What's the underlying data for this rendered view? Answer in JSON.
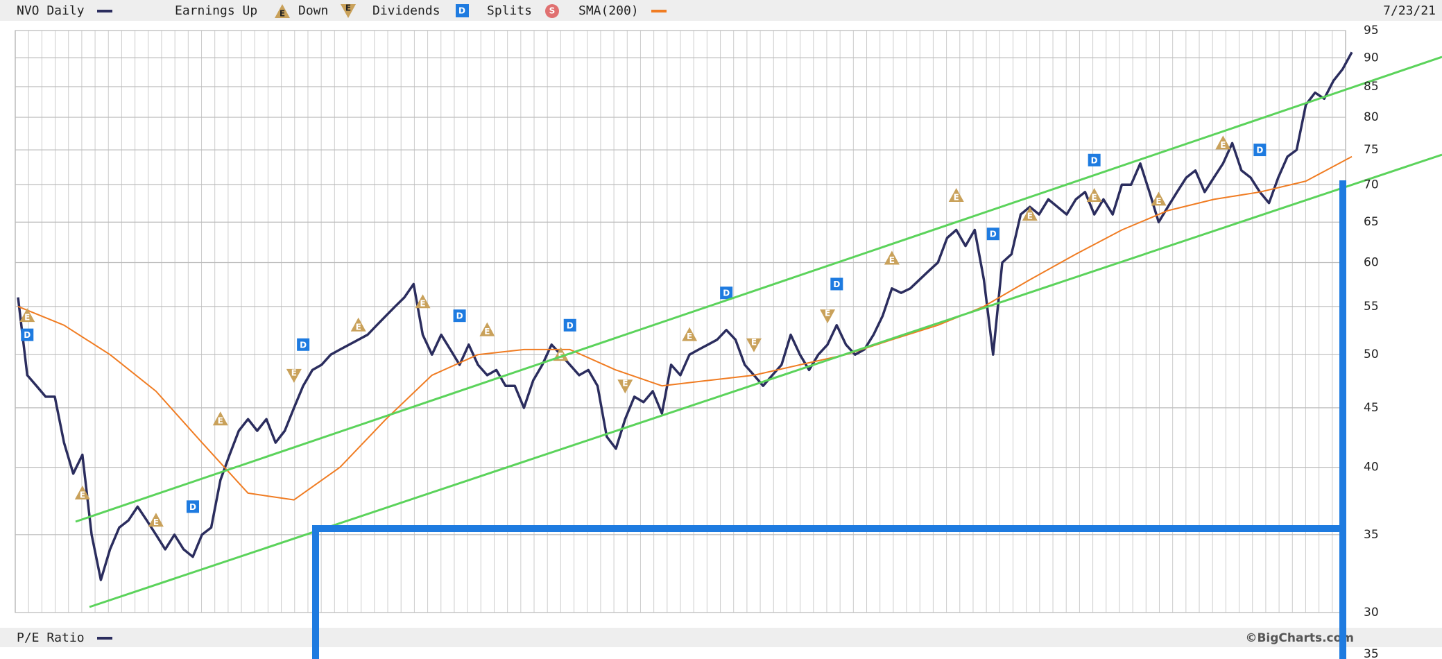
{
  "chart_data": {
    "type": "line",
    "series": [
      {
        "name": "NVO Daily",
        "color": "#2b2d5e",
        "values": [
          56,
          48,
          47,
          46,
          46,
          42,
          39.5,
          41,
          35,
          32,
          34,
          35.5,
          36,
          37,
          36,
          35,
          34,
          35,
          34,
          33.5,
          35,
          35.5,
          39,
          41,
          43,
          44,
          43,
          44,
          42,
          43,
          45,
          47,
          48.5,
          49,
          50,
          50.5,
          51,
          51.5,
          52,
          53,
          54,
          55,
          56,
          57.5,
          52,
          50,
          52,
          50.5,
          49,
          51,
          49,
          48,
          48.5,
          47,
          47,
          45,
          47.5,
          49,
          51,
          50,
          49,
          48,
          48.5,
          47,
          42.5,
          41.5,
          44,
          46,
          45.5,
          46.5,
          44.5,
          49,
          48,
          50,
          50.5,
          51,
          51.5,
          52.5,
          51.5,
          49,
          48,
          47,
          48,
          49,
          52,
          50,
          48.5,
          50,
          51,
          53,
          51,
          50,
          50.5,
          52,
          54,
          57,
          56.5,
          57,
          58,
          59,
          60,
          63,
          64,
          62,
          64,
          58,
          50,
          60,
          61,
          66,
          67,
          66,
          68,
          67,
          66,
          68,
          69,
          66,
          68,
          66,
          70,
          70,
          73,
          69,
          65,
          67,
          69,
          71,
          72,
          69,
          71,
          73,
          76,
          72,
          71,
          69,
          67.5,
          71,
          74,
          75,
          82,
          84,
          83,
          86,
          88,
          91
        ]
      },
      {
        "name": "SMA(200)",
        "color": "#f07c22",
        "values": [
          55,
          53,
          50,
          46.5,
          42,
          38,
          37.5,
          40,
          44,
          48,
          50,
          50.5,
          50.5,
          48.5,
          47,
          47.5,
          48,
          49,
          50,
          51.5,
          53,
          55,
          58,
          61,
          64,
          66.5,
          68,
          69,
          70.5,
          74
        ]
      }
    ],
    "legend_labels": {
      "earnings_up": "Earnings Up",
      "earnings_down": "Down",
      "dividends": "Dividends",
      "splits": "Splits"
    },
    "marker_labels": {
      "earnings": "E",
      "dividend": "D",
      "split": "S"
    },
    "events": {
      "earnings_up": {
        "at": [
          1,
          7,
          15,
          22,
          37,
          44,
          51,
          59,
          73,
          95,
          102,
          110,
          117,
          124,
          131
        ],
        "values": [
          54,
          38,
          36,
          44,
          53,
          55.5,
          52.5,
          50,
          52,
          60.5,
          68.5,
          66,
          68.5,
          68,
          76
        ]
      },
      "earnings_down": {
        "at": [
          30,
          66,
          80,
          88
        ],
        "values": [
          48,
          47,
          51,
          54
        ]
      },
      "dividends": {
        "at": [
          1,
          19,
          31,
          48,
          60,
          77,
          89,
          106,
          117,
          135
        ],
        "values": [
          52,
          37,
          51,
          54,
          53,
          56.5,
          57.5,
          63.5,
          73.5,
          75
        ]
      }
    },
    "date": "7/23/21",
    "credit": "©BigCharts.com",
    "ylim": [
      30,
      95
    ],
    "yticks": [
      30,
      35,
      40,
      45,
      50,
      55,
      60,
      65,
      70,
      75,
      80,
      85,
      90,
      95
    ],
    "log_scale": true,
    "grid": true,
    "lower_panel": {
      "title": "P/E Ratio",
      "yticks": [
        35
      ]
    }
  }
}
